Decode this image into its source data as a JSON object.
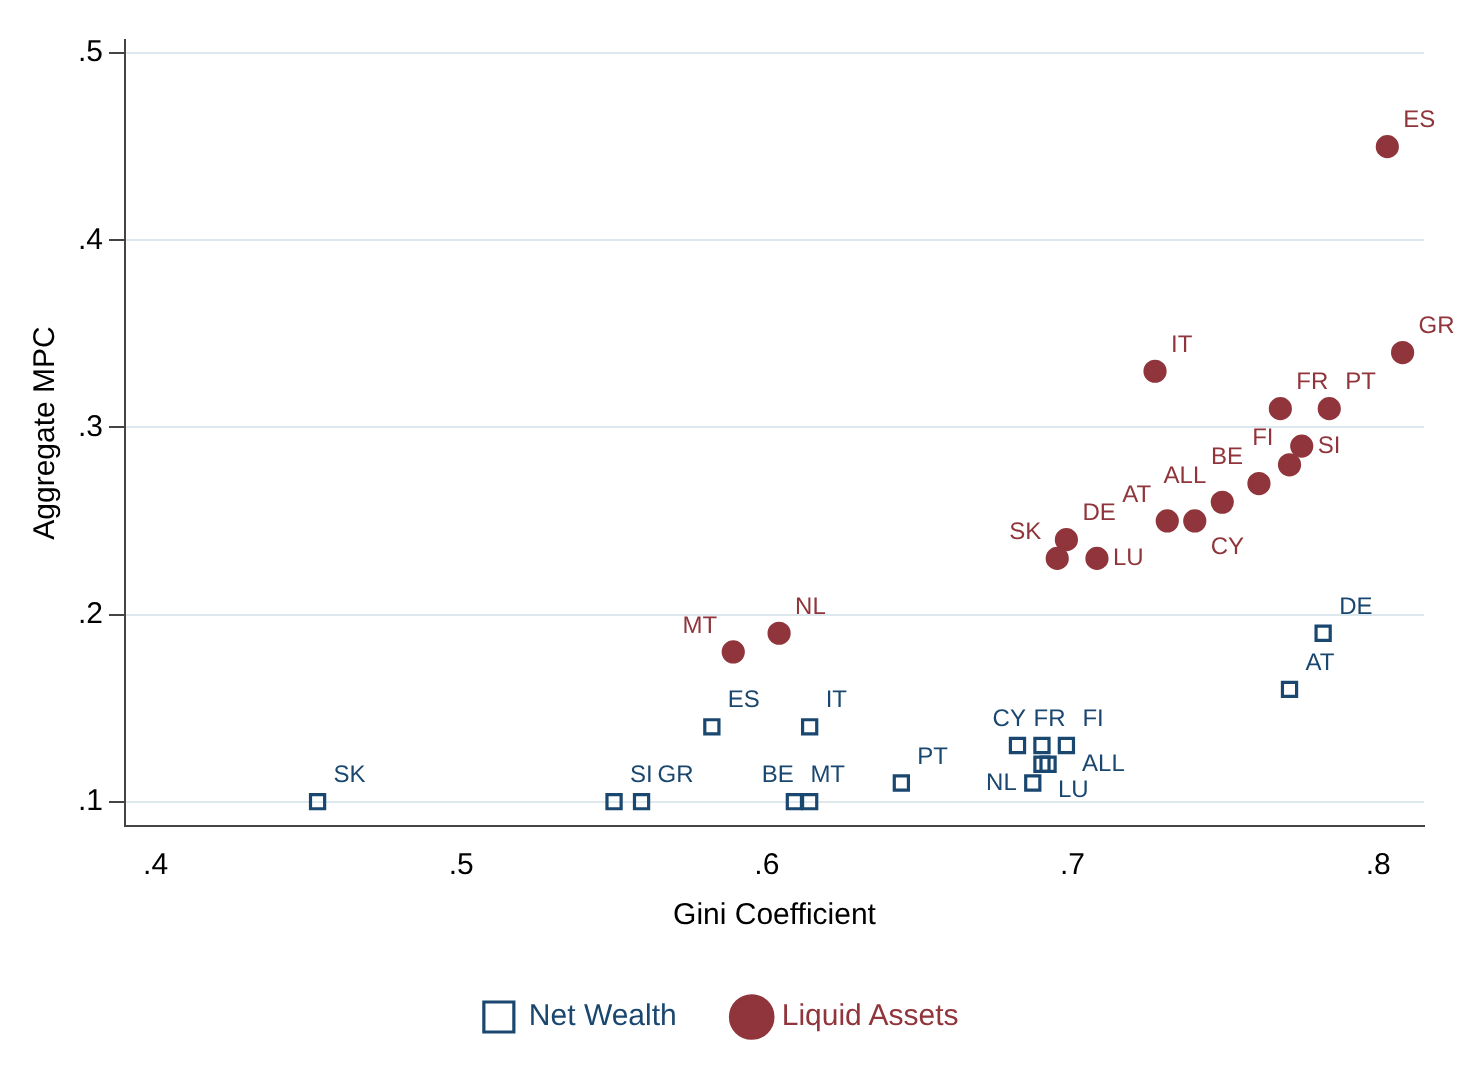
{
  "chart_data": {
    "type": "scatter",
    "xlabel": "Gini Coefficient",
    "ylabel": "Aggregate MPC",
    "xlim": [
      0.39,
      0.815
    ],
    "xticks": [
      {
        "value": 0.4,
        "label": ".4"
      },
      {
        "value": 0.5,
        "label": ".5"
      },
      {
        "value": 0.6,
        "label": ".6"
      },
      {
        "value": 0.7,
        "label": ".7"
      },
      {
        "value": 0.8,
        "label": ".8"
      }
    ],
    "ylim": [
      0.087,
      0.507
    ],
    "yticks": [
      {
        "value": 0.1,
        "label": ".1"
      },
      {
        "value": 0.2,
        "label": ".2"
      },
      {
        "value": 0.3,
        "label": ".3"
      },
      {
        "value": 0.4,
        "label": ".4"
      },
      {
        "value": 0.5,
        "label": ".5"
      }
    ],
    "grid": "y",
    "legend": "bottom",
    "series": [
      {
        "name": "Net Wealth",
        "color": "#1a476f",
        "marker": "square",
        "x": [
          0.453,
          0.55,
          0.559,
          0.582,
          0.614,
          0.609,
          0.614,
          0.644,
          0.682,
          0.69,
          0.698,
          0.69,
          0.692,
          0.687,
          0.782,
          0.771
        ],
        "values": [
          0.1,
          0.1,
          0.1,
          0.14,
          0.14,
          0.1,
          0.1,
          0.11,
          0.13,
          0.13,
          0.13,
          0.12,
          0.12,
          0.11,
          0.19,
          0.16
        ],
        "value_labels": [
          "SK",
          "SI",
          "GR",
          "ES",
          "IT",
          "MT",
          "BE",
          "PT",
          "FR",
          "CY",
          "FI",
          "LU",
          "ALL",
          "NL",
          "DE",
          "AT"
        ]
      },
      {
        "name": "Liquid Assets",
        "color": "#90353b",
        "marker": "circle",
        "x": [
          0.803,
          0.808,
          0.727,
          0.768,
          0.784,
          0.775,
          0.771,
          0.761,
          0.749,
          0.74,
          0.731,
          0.698,
          0.695,
          0.708,
          0.589,
          0.604
        ],
        "values": [
          0.45,
          0.34,
          0.33,
          0.31,
          0.31,
          0.29,
          0.28,
          0.27,
          0.26,
          0.25,
          0.25,
          0.24,
          0.23,
          0.23,
          0.18,
          0.19
        ],
        "value_labels": [
          "ES",
          "GR",
          "IT",
          "FR",
          "PT",
          "SI",
          "FI",
          "BE",
          "ALL",
          "CY",
          "AT",
          "DE",
          "SK",
          "LU",
          "MT",
          "NL"
        ]
      }
    ]
  }
}
